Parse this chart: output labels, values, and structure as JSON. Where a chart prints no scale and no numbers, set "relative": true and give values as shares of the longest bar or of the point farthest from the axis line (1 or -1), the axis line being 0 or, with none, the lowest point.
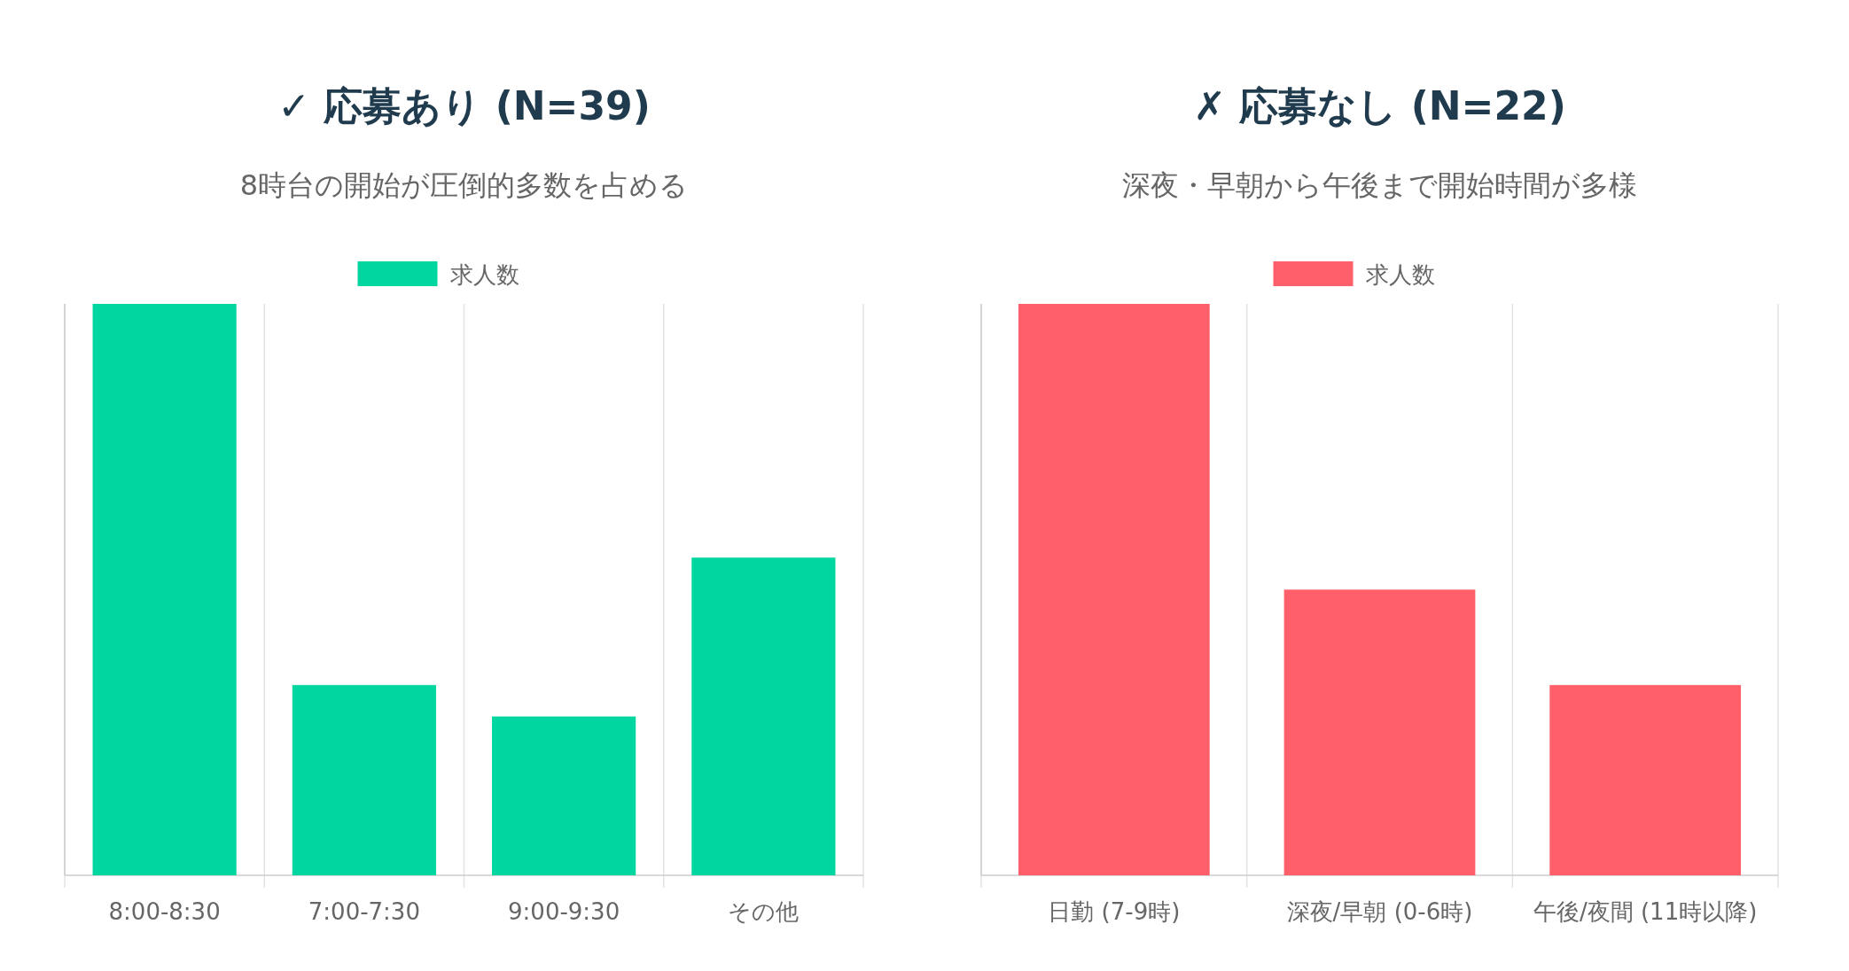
{
  "chart_data": [
    {
      "type": "bar",
      "title": "✓ 応募あり (N=39)",
      "subtitle": "8時台の開始が圧倒的多数を占める",
      "categories": [
        "8:00-8:30",
        "7:00-7:30",
        "9:00-9:30",
        "その他"
      ],
      "relative": true,
      "grid": "x",
      "legend": "top",
      "series": [
        {
          "name": "求人数",
          "color": "#00d6a0",
          "values": [
            1,
            0.333,
            0.278,
            0.556
          ]
        }
      ]
    },
    {
      "type": "bar",
      "title": "✗ 応募なし (N=22)",
      "subtitle": "深夜・早朝から午後まで開始時間が多様",
      "categories": [
        "日勤 (7-9時)",
        "深夜/早朝 (0-6時)",
        "午後/夜間 (11時以降)"
      ],
      "relative": true,
      "grid": "x",
      "legend": "top",
      "series": [
        {
          "name": "求人数",
          "color": "#ff5f6b",
          "values": [
            1,
            0.5,
            0.333
          ]
        }
      ]
    }
  ]
}
